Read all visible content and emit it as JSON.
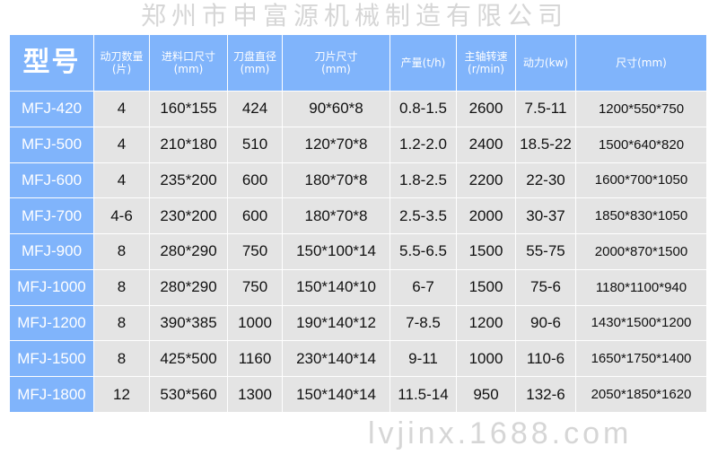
{
  "table": {
    "headers": [
      {
        "line1": "型号",
        "line2": ""
      },
      {
        "line1": "动刀数量",
        "line2": "(片)"
      },
      {
        "line1": "进料口尺寸",
        "line2": "(mm)"
      },
      {
        "line1": "刀盘直径",
        "line2": "(mm)"
      },
      {
        "line1": "刀片尺寸",
        "line2": "(mm)"
      },
      {
        "line1": "产量(t/h)",
        "line2": ""
      },
      {
        "line1": "主轴转速",
        "line2": "(r/min)"
      },
      {
        "line1": "动力(kw)",
        "line2": ""
      },
      {
        "line1": "尺寸(mm)",
        "line2": ""
      }
    ],
    "rows": [
      [
        "MFJ-420",
        "4",
        "160*155",
        "424",
        "90*60*8",
        "0.8-1.5",
        "2600",
        "7.5-11",
        "1200*550*750"
      ],
      [
        "MFJ-500",
        "4",
        "210*180",
        "510",
        "120*70*8",
        "1.2-2.0",
        "2400",
        "18.5-22",
        "1500*640*820"
      ],
      [
        "MFJ-600",
        "4",
        "235*200",
        "600",
        "180*70*8",
        "1.8-2.5",
        "2200",
        "22-30",
        "1600*700*1050"
      ],
      [
        "MFJ-700",
        "4-6",
        "230*200",
        "600",
        "180*70*8",
        "2.5-3.5",
        "2000",
        "30-37",
        "1850*830*1050"
      ],
      [
        "MFJ-900",
        "8",
        "280*290",
        "750",
        "150*100*14",
        "5.5-6.5",
        "1500",
        "55-75",
        "2000*870*1500"
      ],
      [
        "MFJ-1000",
        "8",
        "280*290",
        "750",
        "150*140*10",
        "6-7",
        "1500",
        "75-6",
        "1180*1100*940"
      ],
      [
        "MFJ-1200",
        "8",
        "390*385",
        "1000",
        "190*140*12",
        "7-8.5",
        "1200",
        "90-6",
        "1430*1500*1200"
      ],
      [
        "MFJ-1500",
        "8",
        "425*500",
        "1160",
        "230*140*14",
        "9-11",
        "1000",
        "110-6",
        "1650*1750*1400"
      ],
      [
        "MFJ-1800",
        "12",
        "530*560",
        "1300",
        "150*140*14",
        "11.5-14",
        "950",
        "132-6",
        "2050*1850*1620"
      ]
    ]
  },
  "watermark": {
    "company": "郑州市申富源机械制造有限公司",
    "site": "lvjinx.1688.com"
  },
  "colors": {
    "header_bg": "#80b4fb",
    "cell_bg": "#e4e4e4"
  }
}
